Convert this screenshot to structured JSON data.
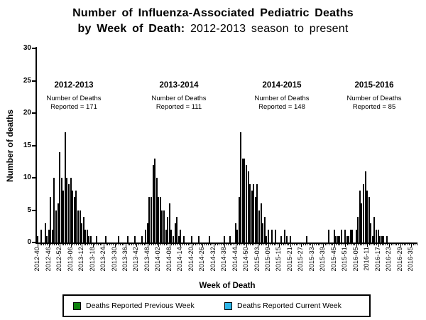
{
  "title": {
    "line1": "Number of Influenza-Associated Pediatric Deaths",
    "line2_bold": "by Week of Death:",
    "line2_regular": " 2012-2013 season to present"
  },
  "y_axis": {
    "label": "Number of deaths"
  },
  "x_axis": {
    "label": "Week of Death"
  },
  "seasons": [
    {
      "name": "2012-2013",
      "note_line1": "Number of Deaths",
      "note_line2": "Reported = 171"
    },
    {
      "name": "2013-2014",
      "note_line1": "Number of Deaths",
      "note_line2": "Reported = 111"
    },
    {
      "name": "2014-2015",
      "note_line1": "Number of Deaths",
      "note_line2": "Reported = 148"
    },
    {
      "name": "2015-2016",
      "note_line1": "Number of Deaths",
      "note_line2": "Reported = 85"
    }
  ],
  "legend": [
    {
      "label": "Deaths Reported Previous Week",
      "color": "#0e810e"
    },
    {
      "label": "Deaths Reported Current Week",
      "color": "#2eb5e8"
    }
  ],
  "colors": {
    "bar_previous_week": "#0e810e",
    "bar_current_week": "#2eb5e8",
    "axis": "#000000"
  },
  "chart_data": {
    "type": "bar",
    "title": "Number of Influenza-Associated Pediatric Deaths by Week of Death: 2012-2013 season to present",
    "xlabel": "Week of Death",
    "ylabel": "Number of deaths",
    "ylim": [
      0,
      30
    ],
    "y_ticks": [
      0,
      5,
      10,
      15,
      20,
      25,
      30
    ],
    "grid": false,
    "legend_position": "bottom",
    "week_structure": [
      {
        "year": 2012,
        "from": 40,
        "to": 52
      },
      {
        "year": 2013,
        "from": 1,
        "to": 52
      },
      {
        "year": 2014,
        "from": 1,
        "to": 53
      },
      {
        "year": 2015,
        "from": 1,
        "to": 52
      },
      {
        "year": 2016,
        "from": 1,
        "to": 38
      }
    ],
    "x_tick_every": 6,
    "x_tick_labels": [
      "2012-40",
      "2012-46",
      "2012-52",
      "2013-06",
      "2013-12",
      "2013-18",
      "2013-24",
      "2013-30",
      "2013-36",
      "2013-42",
      "2013-48",
      "2014-02",
      "2014-08",
      "2014-14",
      "2014-20",
      "2014-26",
      "2014-32",
      "2014-38",
      "2014-44",
      "2014-50",
      "2015-03",
      "2015-09",
      "2015-15",
      "2015-21",
      "2015-27",
      "2015-33",
      "2015-39",
      "2015-45",
      "2015-51",
      "2016-05",
      "2016-11",
      "2016-17",
      "2016-23",
      "2016-29",
      "2016-35"
    ],
    "series_name": "Deaths Reported Previous Week",
    "values": [
      1,
      0,
      2,
      0,
      3,
      1,
      2,
      7,
      2,
      10,
      5,
      6,
      14,
      10,
      8,
      17,
      10,
      9,
      10,
      8,
      7,
      8,
      5,
      5,
      3,
      4,
      2,
      2,
      1,
      1,
      0,
      0,
      1,
      0,
      0,
      0,
      0,
      1,
      0,
      0,
      0,
      0,
      0,
      0,
      1,
      0,
      0,
      0,
      0,
      1,
      0,
      0,
      0,
      1,
      0,
      0,
      0,
      1,
      0,
      2,
      3,
      7,
      7,
      12,
      13,
      10,
      7,
      7,
      5,
      5,
      2,
      4,
      6,
      2,
      1,
      3,
      4,
      1,
      2,
      0,
      1,
      0,
      0,
      0,
      1,
      0,
      0,
      0,
      1,
      0,
      0,
      0,
      0,
      0,
      1,
      0,
      0,
      0,
      0,
      0,
      0,
      0,
      1,
      0,
      0,
      1,
      0,
      0,
      3,
      2,
      7,
      17,
      13,
      13,
      12,
      11,
      9,
      8,
      9,
      7,
      9,
      5,
      6,
      3,
      4,
      1,
      2,
      0,
      2,
      0,
      2,
      0,
      0,
      1,
      0,
      2,
      1,
      0,
      1,
      0,
      0,
      0,
      0,
      0,
      0,
      0,
      0,
      1,
      0,
      0,
      0,
      0,
      0,
      0,
      0,
      0,
      0,
      0,
      0,
      2,
      0,
      0,
      2,
      1,
      1,
      1,
      2,
      0,
      2,
      1,
      1,
      2,
      2,
      0,
      2,
      4,
      8,
      6,
      9,
      11,
      8,
      7,
      3,
      1,
      4,
      2,
      2,
      1,
      1,
      1,
      0,
      1,
      0,
      0,
      0,
      0,
      0,
      0,
      0,
      0,
      0,
      0,
      0,
      0,
      0,
      0,
      0,
      0
    ],
    "current_week_values_note": "no blue (current week) bars visible"
  }
}
